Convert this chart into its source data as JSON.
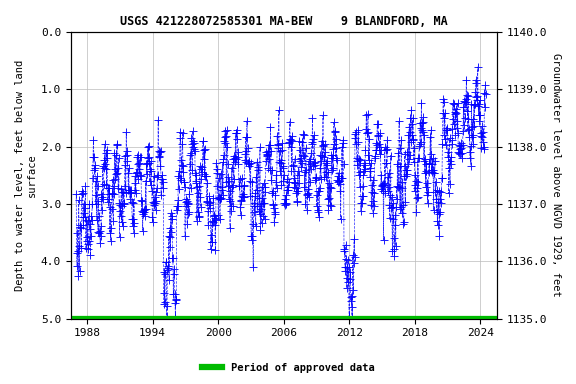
{
  "title": "USGS 421228072585301 MA-BEW    9 BLANDFORD, MA",
  "ylabel_left": "Depth to water level, feet below land\nsurface",
  "ylabel_right": "Groundwater level above NGVD 1929, feet",
  "ylim_left": [
    5.0,
    0.0
  ],
  "ylim_right": [
    1135.0,
    1140.0
  ],
  "xlim": [
    1986.5,
    2025.5
  ],
  "xticks": [
    1988,
    1994,
    2000,
    2006,
    2012,
    2018,
    2024
  ],
  "yticks_left": [
    0.0,
    1.0,
    2.0,
    3.0,
    4.0,
    5.0
  ],
  "yticks_right": [
    1135.0,
    1136.0,
    1137.0,
    1138.0,
    1139.0,
    1140.0
  ],
  "data_color": "#0000ff",
  "approved_color": "#00bb00",
  "legend_label": "Period of approved data",
  "background_color": "#ffffff",
  "grid_color": "#bbbbbb",
  "title_fontsize": 8.5,
  "label_fontsize": 7.5,
  "tick_fontsize": 8,
  "approved_linewidth": 4.5,
  "data_linewidth": 0.5,
  "marker_size": 6
}
